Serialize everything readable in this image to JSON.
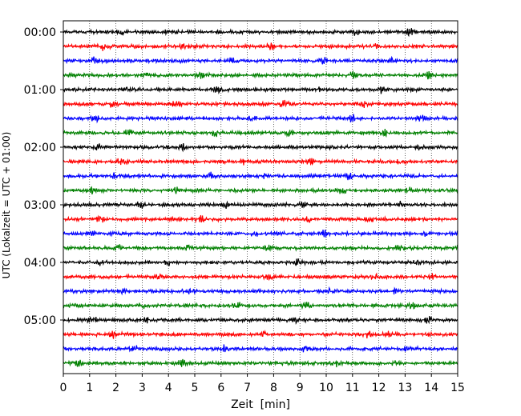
{
  "chart_data": {
    "type": "line",
    "title": "",
    "xlabel": "Zeit  [min]",
    "ylabel": "UTC (Lokalzeit = UTC + 01:00)",
    "xlim": [
      0,
      15
    ],
    "x_ticks": [
      "0",
      "1",
      "2",
      "3",
      "4",
      "5",
      "6",
      "7",
      "8",
      "9",
      "10",
      "11",
      "12",
      "13",
      "14",
      "15"
    ],
    "y_ticks": [
      "00:00",
      "01:00",
      "02:00",
      "03:00",
      "04:00",
      "05:00"
    ],
    "grid": "vertical dotted lines at each minute",
    "legend": "none",
    "trace_interval_min": 15,
    "trace_count": 24,
    "trace_colors": [
      "#000000",
      "#ff0000",
      "#0000ff",
      "#008000"
    ],
    "traces": [
      {
        "start": "00:00",
        "color": "#000000",
        "bursts_min": [
          2.2,
          4.0,
          11.1,
          13.2
        ]
      },
      {
        "start": "00:15",
        "color": "#ff0000",
        "bursts_min": [
          1.5,
          4.6,
          7.9,
          11.8
        ]
      },
      {
        "start": "00:30",
        "color": "#0000ff",
        "bursts_min": [
          1.2,
          6.4,
          9.9,
          12.5
        ]
      },
      {
        "start": "00:45",
        "color": "#008000",
        "bursts_min": [
          3.1,
          5.2,
          11.0,
          13.9
        ]
      },
      {
        "start": "01:00",
        "color": "#000000",
        "bursts_min": [
          2.4,
          5.9,
          9.8,
          12.1
        ]
      },
      {
        "start": "01:15",
        "color": "#ff0000",
        "bursts_min": [
          1.9,
          4.3,
          8.4,
          11.4
        ]
      },
      {
        "start": "01:30",
        "color": "#0000ff",
        "bursts_min": [
          1.2,
          7.2,
          11.0,
          13.6
        ]
      },
      {
        "start": "01:45",
        "color": "#008000",
        "bursts_min": [
          2.5,
          5.8,
          8.6,
          12.2
        ]
      },
      {
        "start": "02:00",
        "color": "#000000",
        "bursts_min": [
          1.3,
          4.6,
          10.3,
          13.5
        ]
      },
      {
        "start": "02:15",
        "color": "#ff0000",
        "bursts_min": [
          2.2,
          6.9,
          9.4,
          12.8
        ]
      },
      {
        "start": "02:30",
        "color": "#0000ff",
        "bursts_min": [
          1.9,
          5.6,
          7.7,
          10.9
        ]
      },
      {
        "start": "02:45",
        "color": "#008000",
        "bursts_min": [
          1.1,
          4.3,
          10.6,
          13.1
        ]
      },
      {
        "start": "03:00",
        "color": "#000000",
        "bursts_min": [
          2.9,
          6.2,
          9.1,
          12.9
        ]
      },
      {
        "start": "03:15",
        "color": "#ff0000",
        "bursts_min": [
          1.4,
          5.2,
          9.3,
          11.7
        ]
      },
      {
        "start": "03:30",
        "color": "#0000ff",
        "bursts_min": [
          1.1,
          7.3,
          9.9,
          13.8
        ]
      },
      {
        "start": "03:45",
        "color": "#008000",
        "bursts_min": [
          2.1,
          4.7,
          7.8,
          12.8
        ]
      },
      {
        "start": "04:00",
        "color": "#000000",
        "bursts_min": [
          1.4,
          4.0,
          8.9,
          13.4
        ]
      },
      {
        "start": "04:15",
        "color": "#ff0000",
        "bursts_min": [
          3.6,
          7.8,
          11.8,
          14.0
        ]
      },
      {
        "start": "04:30",
        "color": "#0000ff",
        "bursts_min": [
          2.3,
          4.9,
          10.1,
          12.6
        ]
      },
      {
        "start": "04:45",
        "color": "#008000",
        "bursts_min": [
          3.0,
          6.6,
          9.3,
          13.3
        ]
      },
      {
        "start": "05:00",
        "color": "#000000",
        "bursts_min": [
          1.1,
          3.2,
          8.8,
          13.9
        ]
      },
      {
        "start": "05:15",
        "color": "#ff0000",
        "bursts_min": [
          1.9,
          7.6,
          11.6,
          12.4
        ]
      },
      {
        "start": "05:30",
        "color": "#0000ff",
        "bursts_min": [
          2.7,
          6.1,
          9.2,
          13.1
        ]
      },
      {
        "start": "05:45",
        "color": "#008000",
        "bursts_min": [
          0.6,
          4.5,
          10.4,
          12.7
        ]
      }
    ]
  }
}
